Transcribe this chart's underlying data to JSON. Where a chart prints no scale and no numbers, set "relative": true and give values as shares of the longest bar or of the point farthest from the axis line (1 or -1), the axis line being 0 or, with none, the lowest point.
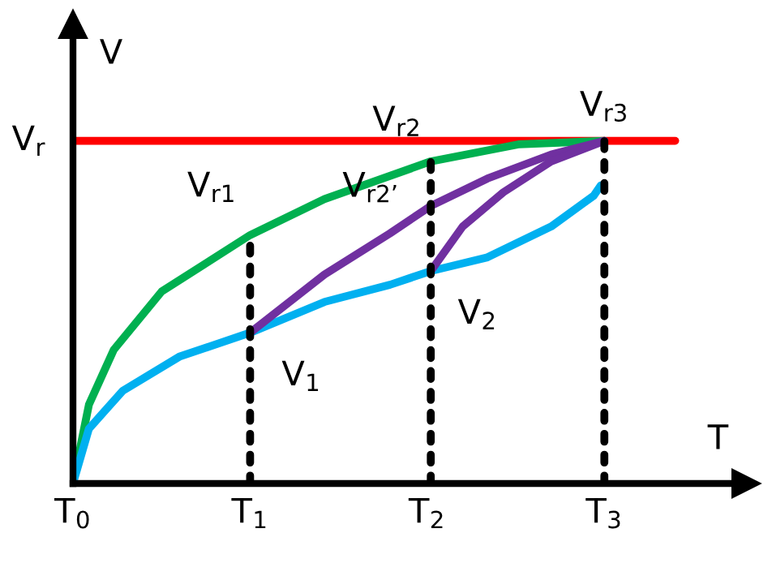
{
  "chart_data": {
    "type": "line",
    "relative": true,
    "xlabel": "T",
    "ylabel": "V",
    "grid": false,
    "marker": "none",
    "xlim": [
      0,
      3.8
    ],
    "xticks": [
      {
        "value": 0,
        "label": "T$_{0}$"
      },
      {
        "value": 1,
        "label": "T$_{1}$"
      },
      {
        "value": 2,
        "label": "T$_{2}$"
      },
      {
        "value": 3,
        "label": "T$_{3}$"
      }
    ],
    "series": [
      {
        "color": "#ff0000",
        "x": [
          0,
          3.4
        ],
        "values": [
          1,
          1
        ]
      },
      {
        "color": "#00b050",
        "x": [
          0,
          0.09,
          0.23,
          0.5,
          1,
          1.42,
          2.02,
          2.52,
          3
        ],
        "values": [
          0,
          0.23,
          0.39,
          0.56,
          0.725,
          0.83,
          0.94,
          0.99,
          1
        ]
      },
      {
        "color": "#00b0f0",
        "x": [
          0,
          0.09,
          0.28,
          0.6,
          1,
          1.42,
          1.79,
          2.02,
          2.34,
          2.7,
          2.94,
          2.98
        ],
        "values": [
          0,
          0.16,
          0.27,
          0.37,
          0.44,
          0.53,
          0.58,
          0.62,
          0.66,
          0.75,
          0.84,
          0.87
        ]
      },
      {
        "color": "#7030a0",
        "x": [
          1,
          1.42,
          1.79,
          2.02,
          2.34,
          2.7,
          3
        ],
        "values": [
          0.44,
          0.61,
          0.73,
          0.81,
          0.89,
          0.96,
          1
        ]
      },
      {
        "color": "#7030a0",
        "x": [
          2.02,
          2.2,
          2.43,
          2.7,
          3
        ],
        "values": [
          0.62,
          0.75,
          0.85,
          0.94,
          1
        ]
      },
      {
        "color": "#000000",
        "line_style": "dotted",
        "x": [
          1,
          1
        ],
        "values": [
          0,
          0.725
        ]
      },
      {
        "color": "#000000",
        "line_style": "dotted",
        "x": [
          2.02,
          2.02
        ],
        "values": [
          0,
          0.97
        ]
      },
      {
        "color": "#000000",
        "line_style": "dotted",
        "x": [
          3,
          3
        ],
        "values": [
          0,
          1
        ]
      }
    ],
    "annotations": [
      {
        "text": "V$_{r}$",
        "x": 0,
        "y": 1
      },
      {
        "text": "V$_{r1}$",
        "x": 1,
        "y": 0.725
      },
      {
        "text": "V$_{r2}$",
        "x": 2.02,
        "y": 0.97
      },
      {
        "text": "V$_{r2’}$",
        "x": 2.02,
        "y": 0.81
      },
      {
        "text": "V$_{r3}$",
        "x": 3,
        "y": 1
      },
      {
        "text": "V$_{1}$",
        "x": 1,
        "y": 0.44
      },
      {
        "text": "V$_{2}$",
        "x": 2.02,
        "y": 0.62
      }
    ]
  }
}
